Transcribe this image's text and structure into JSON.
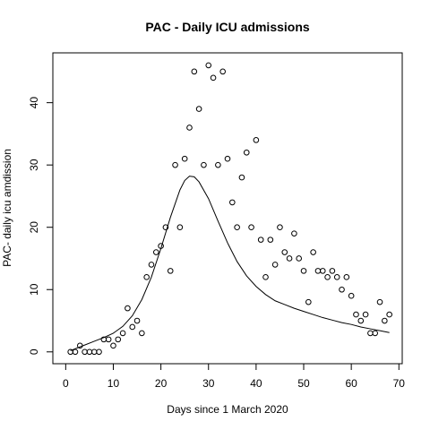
{
  "chart_data": {
    "type": "scatter",
    "title": "PAC - Daily ICU admissions",
    "xlabel": "Days since 1 March 2020",
    "ylabel": "PAC- daily icu amdission",
    "xlim": [
      -2.7,
      70.7
    ],
    "ylim": [
      -1.9,
      48
    ],
    "xticks": [
      0,
      10,
      20,
      30,
      40,
      50,
      60,
      70
    ],
    "yticks": [
      0,
      10,
      20,
      30,
      40
    ],
    "grid": false,
    "series": [
      {
        "kind": "points",
        "marker": "open-circle",
        "x": [
          1,
          2,
          3,
          4,
          5,
          6,
          7,
          8,
          9,
          10,
          11,
          12,
          13,
          14,
          15,
          16,
          17,
          18,
          19,
          20,
          21,
          22,
          23,
          24,
          25,
          26,
          27,
          28,
          29,
          30,
          31,
          32,
          33,
          34,
          35,
          36,
          37,
          38,
          39,
          40,
          41,
          42,
          43,
          44,
          45,
          46,
          47,
          48,
          49,
          50,
          51,
          52,
          53,
          54,
          55,
          56,
          57,
          58,
          59,
          60,
          61,
          62,
          63,
          64,
          65,
          66,
          67,
          68
        ],
        "y": [
          0,
          0,
          1,
          0,
          0,
          0,
          0,
          2,
          2,
          1,
          2,
          3,
          7,
          4,
          5,
          3,
          12,
          14,
          16,
          17,
          20,
          13,
          30,
          20,
          31,
          36,
          45,
          39,
          30,
          46,
          44,
          30,
          45,
          31,
          24,
          20,
          28,
          32,
          20,
          34,
          18,
          12,
          18,
          14,
          20,
          16,
          15,
          19,
          15,
          13,
          8,
          16,
          13,
          13,
          12,
          13,
          12,
          10,
          12,
          9,
          6,
          5,
          6,
          3,
          3,
          8,
          5,
          6
        ]
      },
      {
        "kind": "fitted-curve",
        "x": [
          1,
          2,
          4,
          6,
          8,
          10,
          12,
          14,
          16,
          18,
          20,
          22,
          24,
          25,
          26,
          27,
          28,
          30,
          32,
          34,
          36,
          38,
          40,
          42,
          44,
          46,
          48,
          50,
          52,
          54,
          56,
          58,
          60,
          62,
          64,
          66,
          68
        ],
        "y": [
          0.2,
          0.5,
          1.1,
          1.7,
          2.3,
          3.0,
          4.1,
          5.8,
          8.4,
          12.0,
          16.6,
          21.6,
          26.0,
          27.5,
          28.2,
          28.1,
          27.3,
          24.6,
          21.0,
          17.5,
          14.5,
          12.2,
          10.5,
          9.2,
          8.2,
          7.6,
          7.0,
          6.5,
          6.0,
          5.5,
          5.1,
          4.7,
          4.4,
          4.0,
          3.7,
          3.4,
          3.1
        ]
      }
    ]
  }
}
